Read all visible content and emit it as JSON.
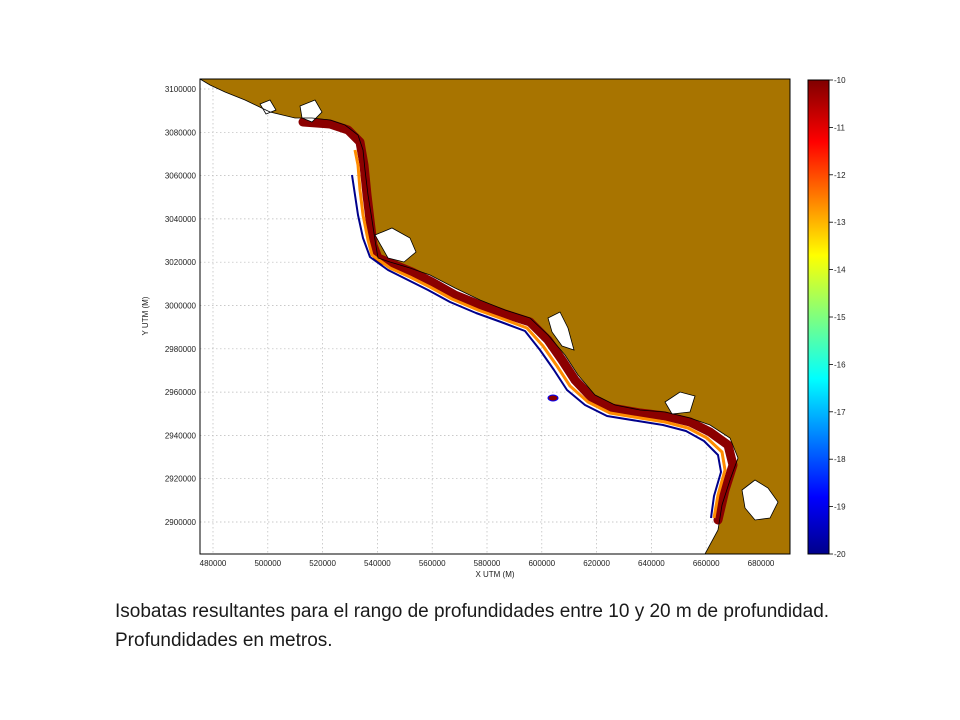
{
  "map": {
    "x_axis_label": "X UTM (M)",
    "y_axis_label": "Y UTM (M)",
    "x_ticks": [
      "480000",
      "500000",
      "520000",
      "540000",
      "560000",
      "580000",
      "600000",
      "620000",
      "640000",
      "660000",
      "680000"
    ],
    "y_ticks": [
      "3100000",
      "3080000",
      "3060000",
      "3040000",
      "3020000",
      "3000000",
      "2980000",
      "2960000",
      "2940000",
      "2920000",
      "2900000"
    ],
    "colorbar_ticks": [
      "-10",
      "-11",
      "-12",
      "-13",
      "-14",
      "-15",
      "-16",
      "-17",
      "-18",
      "-19",
      "-20"
    ],
    "colors": {
      "land": "#a87400",
      "water": "#ffffff",
      "shallow": "#8b0000",
      "deep": "#00008b",
      "grid": "#b8b8b8"
    }
  },
  "caption": "Isobatas resultantes para el rango de profundidades entre 10 y 20 m de profundidad. Profundidades en metros."
}
